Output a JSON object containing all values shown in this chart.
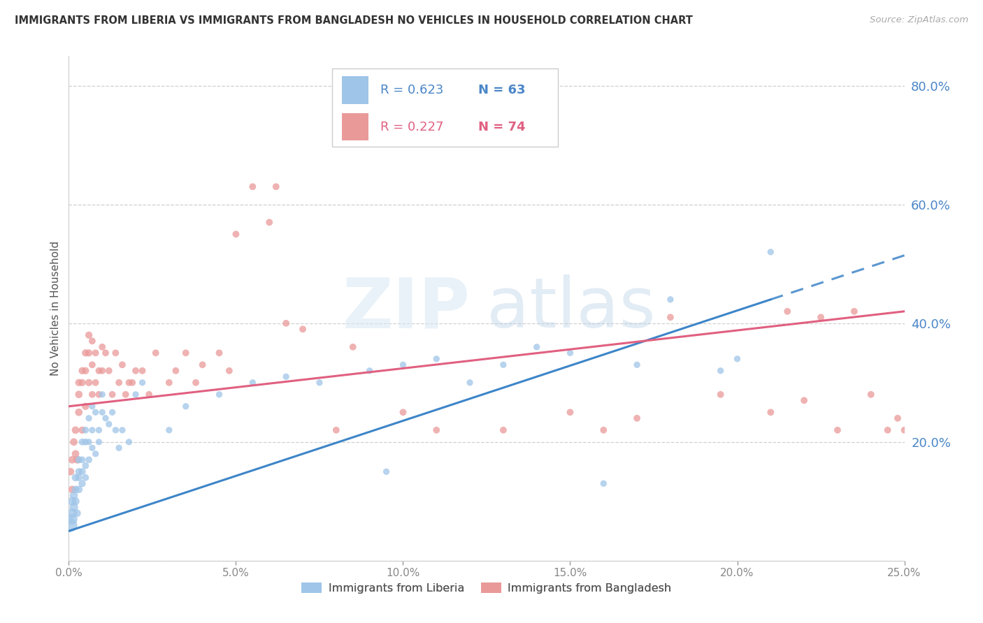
{
  "title": "IMMIGRANTS FROM LIBERIA VS IMMIGRANTS FROM BANGLADESH NO VEHICLES IN HOUSEHOLD CORRELATION CHART",
  "source": "Source: ZipAtlas.com",
  "ylabel": "No Vehicles in Household",
  "legend_label1": "Immigrants from Liberia",
  "legend_label2": "Immigrants from Bangladesh",
  "R1": 0.623,
  "N1": 63,
  "R2": 0.227,
  "N2": 74,
  "color1": "#9fc5e8",
  "color2": "#ea9999",
  "line_color1": "#3d85c8",
  "line_color2": "#e06080",
  "right_axis_color": "#4a86c8",
  "xlim": [
    0.0,
    0.25
  ],
  "ylim": [
    0.0,
    0.85
  ],
  "xticks": [
    0.0,
    0.05,
    0.1,
    0.15,
    0.2,
    0.25
  ],
  "yticks_right": [
    0.2,
    0.4,
    0.6,
    0.8
  ],
  "watermark_zip": "ZIP",
  "watermark_atlas": "atlas",
  "line1_x0": 0.0,
  "line1_y0": 0.05,
  "line1_x1": 0.21,
  "line1_y1": 0.44,
  "line2_x0": 0.0,
  "line2_y0": 0.26,
  "line2_x1": 0.25,
  "line2_y1": 0.42,
  "scatter1_x": [
    0.0005,
    0.001,
    0.001,
    0.001,
    0.0015,
    0.0015,
    0.002,
    0.002,
    0.002,
    0.0025,
    0.003,
    0.003,
    0.003,
    0.003,
    0.004,
    0.004,
    0.004,
    0.004,
    0.005,
    0.005,
    0.005,
    0.005,
    0.006,
    0.006,
    0.006,
    0.007,
    0.007,
    0.007,
    0.008,
    0.008,
    0.009,
    0.009,
    0.01,
    0.01,
    0.011,
    0.012,
    0.013,
    0.014,
    0.015,
    0.016,
    0.018,
    0.02,
    0.022,
    0.03,
    0.035,
    0.045,
    0.055,
    0.065,
    0.075,
    0.09,
    0.095,
    0.1,
    0.11,
    0.12,
    0.13,
    0.14,
    0.15,
    0.16,
    0.17,
    0.18,
    0.195,
    0.2,
    0.21
  ],
  "scatter1_y": [
    0.06,
    0.07,
    0.08,
    0.1,
    0.09,
    0.11,
    0.1,
    0.12,
    0.14,
    0.08,
    0.12,
    0.14,
    0.15,
    0.17,
    0.13,
    0.15,
    0.17,
    0.2,
    0.14,
    0.16,
    0.2,
    0.22,
    0.17,
    0.2,
    0.24,
    0.19,
    0.22,
    0.26,
    0.18,
    0.25,
    0.2,
    0.22,
    0.25,
    0.28,
    0.24,
    0.23,
    0.25,
    0.22,
    0.19,
    0.22,
    0.2,
    0.28,
    0.3,
    0.22,
    0.26,
    0.28,
    0.3,
    0.31,
    0.3,
    0.32,
    0.15,
    0.33,
    0.34,
    0.3,
    0.33,
    0.36,
    0.35,
    0.13,
    0.33,
    0.44,
    0.32,
    0.34,
    0.52
  ],
  "scatter1_sizes": [
    200,
    120,
    100,
    80,
    80,
    70,
    70,
    60,
    60,
    60,
    60,
    55,
    55,
    55,
    55,
    55,
    50,
    50,
    50,
    50,
    50,
    50,
    50,
    45,
    45,
    45,
    45,
    45,
    45,
    45,
    45,
    45,
    45,
    45,
    45,
    45,
    45,
    45,
    45,
    45,
    45,
    45,
    45,
    45,
    45,
    45,
    45,
    45,
    45,
    45,
    45,
    45,
    45,
    45,
    45,
    45,
    45,
    45,
    45,
    45,
    45,
    45,
    45
  ],
  "scatter2_x": [
    0.0005,
    0.001,
    0.001,
    0.0015,
    0.002,
    0.002,
    0.0025,
    0.003,
    0.003,
    0.003,
    0.004,
    0.004,
    0.004,
    0.005,
    0.005,
    0.005,
    0.006,
    0.006,
    0.006,
    0.007,
    0.007,
    0.007,
    0.008,
    0.008,
    0.009,
    0.009,
    0.01,
    0.01,
    0.011,
    0.012,
    0.013,
    0.014,
    0.015,
    0.016,
    0.017,
    0.018,
    0.019,
    0.02,
    0.022,
    0.024,
    0.026,
    0.03,
    0.032,
    0.035,
    0.038,
    0.04,
    0.045,
    0.048,
    0.05,
    0.055,
    0.06,
    0.065,
    0.07,
    0.085,
    0.1,
    0.11,
    0.13,
    0.15,
    0.16,
    0.17,
    0.18,
    0.195,
    0.21,
    0.215,
    0.22,
    0.225,
    0.23,
    0.235,
    0.24,
    0.245,
    0.248,
    0.25,
    0.062,
    0.08
  ],
  "scatter2_y": [
    0.15,
    0.12,
    0.17,
    0.2,
    0.18,
    0.22,
    0.17,
    0.25,
    0.28,
    0.3,
    0.22,
    0.3,
    0.32,
    0.26,
    0.32,
    0.35,
    0.3,
    0.35,
    0.38,
    0.28,
    0.33,
    0.37,
    0.3,
    0.35,
    0.28,
    0.32,
    0.32,
    0.36,
    0.35,
    0.32,
    0.28,
    0.35,
    0.3,
    0.33,
    0.28,
    0.3,
    0.3,
    0.32,
    0.32,
    0.28,
    0.35,
    0.3,
    0.32,
    0.35,
    0.3,
    0.33,
    0.35,
    0.32,
    0.55,
    0.63,
    0.57,
    0.4,
    0.39,
    0.36,
    0.25,
    0.22,
    0.22,
    0.25,
    0.22,
    0.24,
    0.41,
    0.28,
    0.25,
    0.42,
    0.27,
    0.41,
    0.22,
    0.42,
    0.28,
    0.22,
    0.24,
    0.22,
    0.63,
    0.22
  ],
  "scatter2_sizes": [
    60,
    60,
    60,
    60,
    60,
    60,
    60,
    60,
    60,
    55,
    55,
    55,
    55,
    55,
    55,
    55,
    55,
    55,
    55,
    50,
    50,
    50,
    50,
    50,
    50,
    50,
    50,
    50,
    50,
    50,
    50,
    50,
    50,
    50,
    50,
    50,
    50,
    50,
    50,
    50,
    50,
    50,
    50,
    50,
    50,
    50,
    50,
    50,
    50,
    50,
    50,
    50,
    50,
    50,
    50,
    50,
    50,
    50,
    50,
    50,
    50,
    50,
    50,
    50,
    50,
    50,
    50,
    50,
    50,
    50,
    50,
    50,
    50,
    50
  ]
}
